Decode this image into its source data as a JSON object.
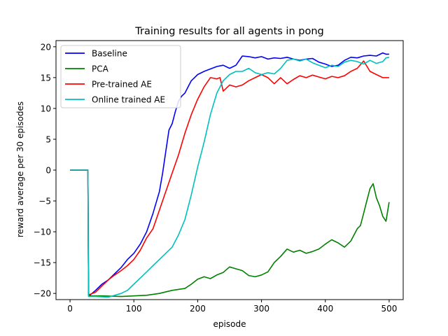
{
  "chart_data": {
    "type": "line",
    "title": "Training results for all agents in pong",
    "xlabel": "episode",
    "ylabel": "reward average per 30 episodes",
    "xlim": [
      -22,
      522
    ],
    "ylim": [
      -21,
      21
    ],
    "xticks": [
      0,
      100,
      200,
      300,
      400,
      500
    ],
    "yticks": [
      -20,
      -15,
      -10,
      -5,
      0,
      5,
      10,
      15,
      20
    ],
    "grid": false,
    "legend_position": "top-left",
    "series": [
      {
        "name": "Baseline",
        "color": "#0000ff",
        "x": [
          0,
          28,
          29,
          30,
          40,
          50,
          60,
          70,
          80,
          90,
          100,
          110,
          120,
          130,
          140,
          145,
          150,
          155,
          160,
          165,
          170,
          175,
          180,
          185,
          190,
          195,
          200,
          210,
          220,
          230,
          240,
          250,
          260,
          270,
          280,
          290,
          300,
          310,
          320,
          330,
          340,
          350,
          360,
          370,
          380,
          390,
          400,
          410,
          420,
          430,
          440,
          450,
          460,
          470,
          480,
          490,
          495,
          500
        ],
        "y": [
          0,
          0,
          -20.3,
          -20.4,
          -19.5,
          -18.5,
          -17.8,
          -16.8,
          -15.8,
          -14.5,
          -13.5,
          -12.0,
          -10.0,
          -7.0,
          -3.5,
          -0.5,
          3.0,
          6.5,
          7.5,
          9.5,
          11.2,
          12.0,
          12.5,
          13.5,
          14.5,
          15.0,
          15.5,
          16.0,
          16.4,
          16.8,
          17.0,
          16.5,
          17.0,
          18.5,
          18.4,
          18.2,
          18.4,
          18.0,
          18.2,
          18.1,
          18.3,
          18.0,
          17.8,
          18.0,
          18.1,
          17.5,
          17.2,
          16.8,
          17.0,
          17.8,
          18.3,
          18.2,
          18.5,
          18.6,
          18.5,
          19.0,
          18.8,
          18.8
        ]
      },
      {
        "name": "PCA",
        "color": "#008000",
        "x": [
          0,
          28,
          29,
          30,
          50,
          80,
          100,
          120,
          140,
          160,
          180,
          190,
          200,
          210,
          220,
          230,
          240,
          250,
          260,
          270,
          280,
          290,
          300,
          310,
          320,
          330,
          340,
          350,
          360,
          370,
          380,
          390,
          400,
          410,
          420,
          430,
          440,
          450,
          455,
          460,
          465,
          470,
          475,
          480,
          485,
          490,
          495,
          500
        ],
        "y": [
          0,
          0,
          -20.4,
          -20.4,
          -20.4,
          -20.5,
          -20.4,
          -20.3,
          -20.0,
          -19.5,
          -19.2,
          -18.5,
          -17.7,
          -17.3,
          -17.6,
          -17.0,
          -16.6,
          -15.7,
          -16.0,
          -16.3,
          -17.1,
          -17.3,
          -17.0,
          -16.5,
          -15.0,
          -14.0,
          -12.8,
          -13.3,
          -13.0,
          -13.5,
          -13.2,
          -12.8,
          -12.0,
          -11.3,
          -11.8,
          -12.5,
          -11.5,
          -9.5,
          -9.0,
          -7.0,
          -5.0,
          -3.0,
          -2.2,
          -4.5,
          -5.8,
          -7.5,
          -8.3,
          -5.2
        ]
      },
      {
        "name": "Pre-trained AE",
        "color": "#ff0000",
        "x": [
          0,
          28,
          29,
          30,
          40,
          50,
          60,
          70,
          80,
          90,
          100,
          110,
          120,
          130,
          140,
          150,
          160,
          170,
          180,
          190,
          200,
          205,
          210,
          220,
          230,
          235,
          240,
          250,
          260,
          270,
          280,
          290,
          300,
          310,
          320,
          330,
          340,
          350,
          360,
          370,
          380,
          390,
          400,
          410,
          420,
          430,
          440,
          450,
          460,
          470,
          480,
          490,
          500
        ],
        "y": [
          0,
          0,
          -20.2,
          -20.2,
          -19.8,
          -18.8,
          -17.8,
          -17.0,
          -16.3,
          -15.5,
          -14.5,
          -13.0,
          -11.0,
          -9.5,
          -6.5,
          -3.5,
          -0.5,
          2.5,
          6.0,
          9.0,
          11.5,
          12.5,
          13.5,
          15.0,
          14.8,
          15.0,
          12.8,
          13.8,
          13.5,
          13.8,
          14.5,
          15.0,
          15.5,
          15.0,
          14.0,
          15.0,
          14.0,
          14.7,
          15.3,
          15.0,
          15.4,
          15.1,
          14.8,
          15.2,
          15.0,
          15.3,
          16.0,
          16.5,
          17.7,
          16.0,
          15.5,
          15.0,
          15.0
        ]
      },
      {
        "name": "Online trained AE",
        "color": "#00bfbf",
        "x": [
          0,
          28,
          29,
          30,
          40,
          60,
          80,
          90,
          100,
          110,
          120,
          130,
          140,
          150,
          160,
          170,
          180,
          190,
          200,
          210,
          220,
          230,
          240,
          250,
          260,
          270,
          280,
          290,
          300,
          310,
          320,
          330,
          340,
          350,
          360,
          370,
          380,
          390,
          400,
          410,
          420,
          430,
          440,
          450,
          460,
          470,
          480,
          490,
          495,
          500
        ],
        "y": [
          0,
          0,
          -20.5,
          -20.5,
          -20.5,
          -20.6,
          -20.0,
          -19.5,
          -18.5,
          -17.5,
          -16.5,
          -15.5,
          -14.5,
          -13.5,
          -12.5,
          -10.5,
          -8.0,
          -4.0,
          0.5,
          4.5,
          9.0,
          12.5,
          14.5,
          15.5,
          16.0,
          16.0,
          16.5,
          15.8,
          15.5,
          15.8,
          15.6,
          16.5,
          17.8,
          18.0,
          17.7,
          18.0,
          17.4,
          17.0,
          16.6,
          17.0,
          16.8,
          17.5,
          17.8,
          17.6,
          17.2,
          17.8,
          17.3,
          17.6,
          18.2,
          18.3
        ]
      }
    ]
  }
}
